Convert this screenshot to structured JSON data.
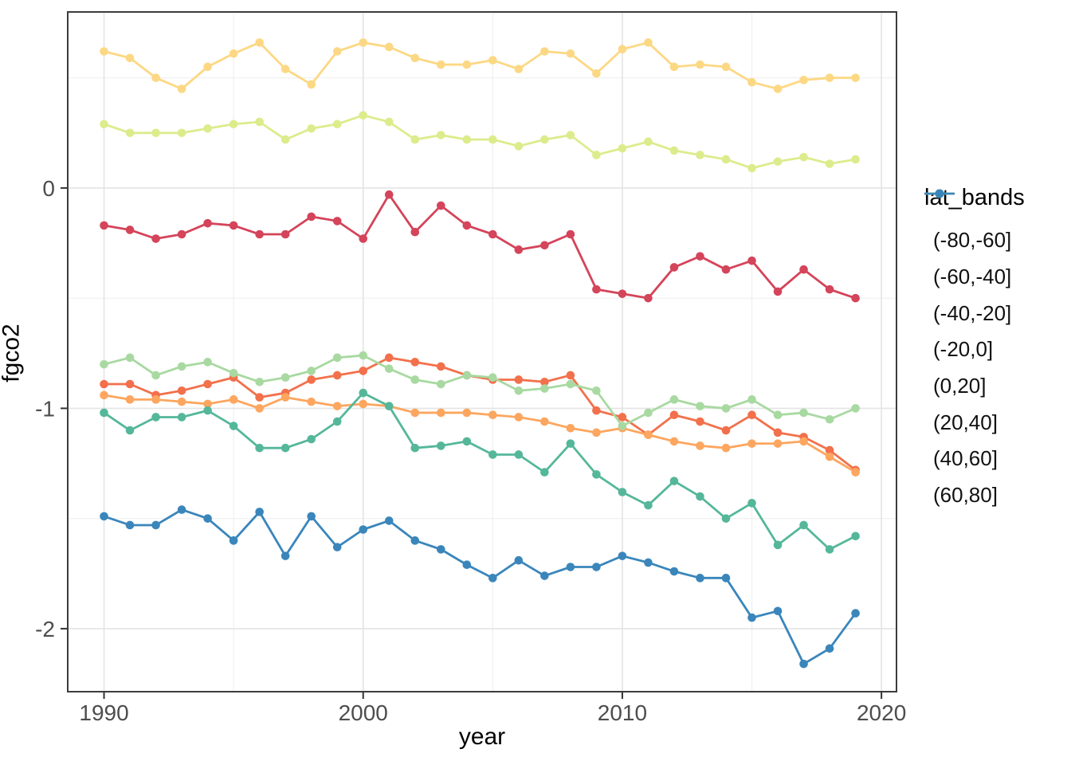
{
  "chart_data": {
    "type": "line",
    "title": "",
    "xlabel": "year",
    "ylabel": "fgco2",
    "legend_title": "lat_bands",
    "legend_position": "right",
    "grid": true,
    "x": [
      1990,
      1991,
      1992,
      1993,
      1994,
      1995,
      1996,
      1997,
      1998,
      1999,
      2000,
      2001,
      2002,
      2003,
      2004,
      2005,
      2006,
      2007,
      2008,
      2009,
      2010,
      2011,
      2012,
      2013,
      2014,
      2015,
      2016,
      2017,
      2018,
      2019
    ],
    "xlim": [
      1988.6,
      2020.58
    ],
    "ylim": [
      -2.286,
      0.799
    ],
    "x_major_ticks": [
      1990,
      2000,
      2010,
      2020
    ],
    "x_minor_ticks": [
      1995,
      2005,
      2015
    ],
    "y_major_ticks": [
      0,
      -1,
      -2
    ],
    "y_minor_ticks": [
      0.5,
      -0.5,
      -1.5
    ],
    "x_tick_labels": [
      "1990",
      "2000",
      "2010",
      "2020"
    ],
    "y_tick_labels": [
      "0",
      "-1",
      "-2"
    ],
    "series": [
      {
        "name": "(-80,-60]",
        "color": "#d4445a",
        "values": [
          -0.17,
          -0.19,
          -0.23,
          -0.21,
          -0.16,
          -0.17,
          -0.21,
          -0.21,
          -0.13,
          -0.15,
          -0.23,
          -0.03,
          -0.2,
          -0.08,
          -0.17,
          -0.21,
          -0.28,
          -0.26,
          -0.21,
          -0.46,
          -0.48,
          -0.5,
          -0.36,
          -0.31,
          -0.37,
          -0.33,
          -0.47,
          -0.37,
          -0.46,
          -0.5
        ]
      },
      {
        "name": "(-60,-40]",
        "color": "#f2704b",
        "values": [
          -0.89,
          -0.89,
          -0.94,
          -0.92,
          -0.89,
          -0.86,
          -0.95,
          -0.93,
          -0.87,
          -0.85,
          -0.83,
          -0.77,
          -0.79,
          -0.81,
          -0.85,
          -0.87,
          -0.87,
          -0.88,
          -0.85,
          -1.01,
          -1.04,
          -1.12,
          -1.03,
          -1.06,
          -1.1,
          -1.03,
          -1.11,
          -1.13,
          -1.19,
          -1.28
        ]
      },
      {
        "name": "(-40,-20]",
        "color": "#fca65f",
        "values": [
          -0.94,
          -0.96,
          -0.96,
          -0.97,
          -0.98,
          -0.96,
          -1.0,
          -0.95,
          -0.97,
          -0.99,
          -0.98,
          -0.99,
          -1.02,
          -1.02,
          -1.02,
          -1.03,
          -1.04,
          -1.06,
          -1.09,
          -1.11,
          -1.09,
          -1.12,
          -1.15,
          -1.17,
          -1.18,
          -1.16,
          -1.16,
          -1.15,
          -1.22,
          -1.29
        ]
      },
      {
        "name": "(-20,0]",
        "color": "#fcd884",
        "values": [
          0.62,
          0.59,
          0.5,
          0.45,
          0.55,
          0.61,
          0.66,
          0.54,
          0.47,
          0.62,
          0.66,
          0.64,
          0.59,
          0.56,
          0.56,
          0.58,
          0.54,
          0.62,
          0.61,
          0.52,
          0.63,
          0.66,
          0.55,
          0.56,
          0.55,
          0.48,
          0.45,
          0.49,
          0.5,
          0.5
        ]
      },
      {
        "name": "(0,20]",
        "color": "#dcec8c",
        "values": [
          0.29,
          0.25,
          0.25,
          0.25,
          0.27,
          0.29,
          0.3,
          0.22,
          0.27,
          0.29,
          0.33,
          0.3,
          0.22,
          0.24,
          0.22,
          0.22,
          0.19,
          0.22,
          0.24,
          0.15,
          0.18,
          0.21,
          0.17,
          0.15,
          0.13,
          0.09,
          0.12,
          0.14,
          0.11,
          0.13
        ]
      },
      {
        "name": "(20,40]",
        "color": "#a8d9a1",
        "values": [
          -0.8,
          -0.77,
          -0.85,
          -0.81,
          -0.79,
          -0.84,
          -0.88,
          -0.86,
          -0.83,
          -0.77,
          -0.76,
          -0.82,
          -0.87,
          -0.89,
          -0.85,
          -0.86,
          -0.92,
          -0.91,
          -0.89,
          -0.92,
          -1.08,
          -1.02,
          -0.96,
          -0.99,
          -1.0,
          -0.96,
          -1.03,
          -1.02,
          -1.05,
          -1.0
        ]
      },
      {
        "name": "(40,60]",
        "color": "#55b79a",
        "values": [
          -1.02,
          -1.1,
          -1.04,
          -1.04,
          -1.01,
          -1.08,
          -1.18,
          -1.18,
          -1.14,
          -1.06,
          -0.93,
          -0.99,
          -1.18,
          -1.17,
          -1.15,
          -1.21,
          -1.21,
          -1.29,
          -1.16,
          -1.3,
          -1.38,
          -1.44,
          -1.33,
          -1.4,
          -1.5,
          -1.43,
          -1.62,
          -1.53,
          -1.64,
          -1.58
        ]
      },
      {
        "name": "(60,80]",
        "color": "#3a86bb",
        "values": [
          -1.49,
          -1.53,
          -1.53,
          -1.46,
          -1.5,
          -1.6,
          -1.47,
          -1.67,
          -1.49,
          -1.63,
          -1.55,
          -1.51,
          -1.6,
          -1.64,
          -1.71,
          -1.77,
          -1.69,
          -1.76,
          -1.72,
          -1.72,
          -1.67,
          -1.7,
          -1.74,
          -1.77,
          -1.77,
          -1.95,
          -1.92,
          -2.16,
          -2.09,
          -1.93
        ]
      }
    ],
    "style": {
      "panel_background": "#ffffff",
      "panel_border": "#3c3c3c",
      "grid_major_color": "#e4e4e4",
      "grid_minor_color": "#efefef",
      "tick_color": "#333333",
      "tick_label_color": "#4d4d4d",
      "point_radius": 5.3,
      "line_width": 2.8
    }
  }
}
